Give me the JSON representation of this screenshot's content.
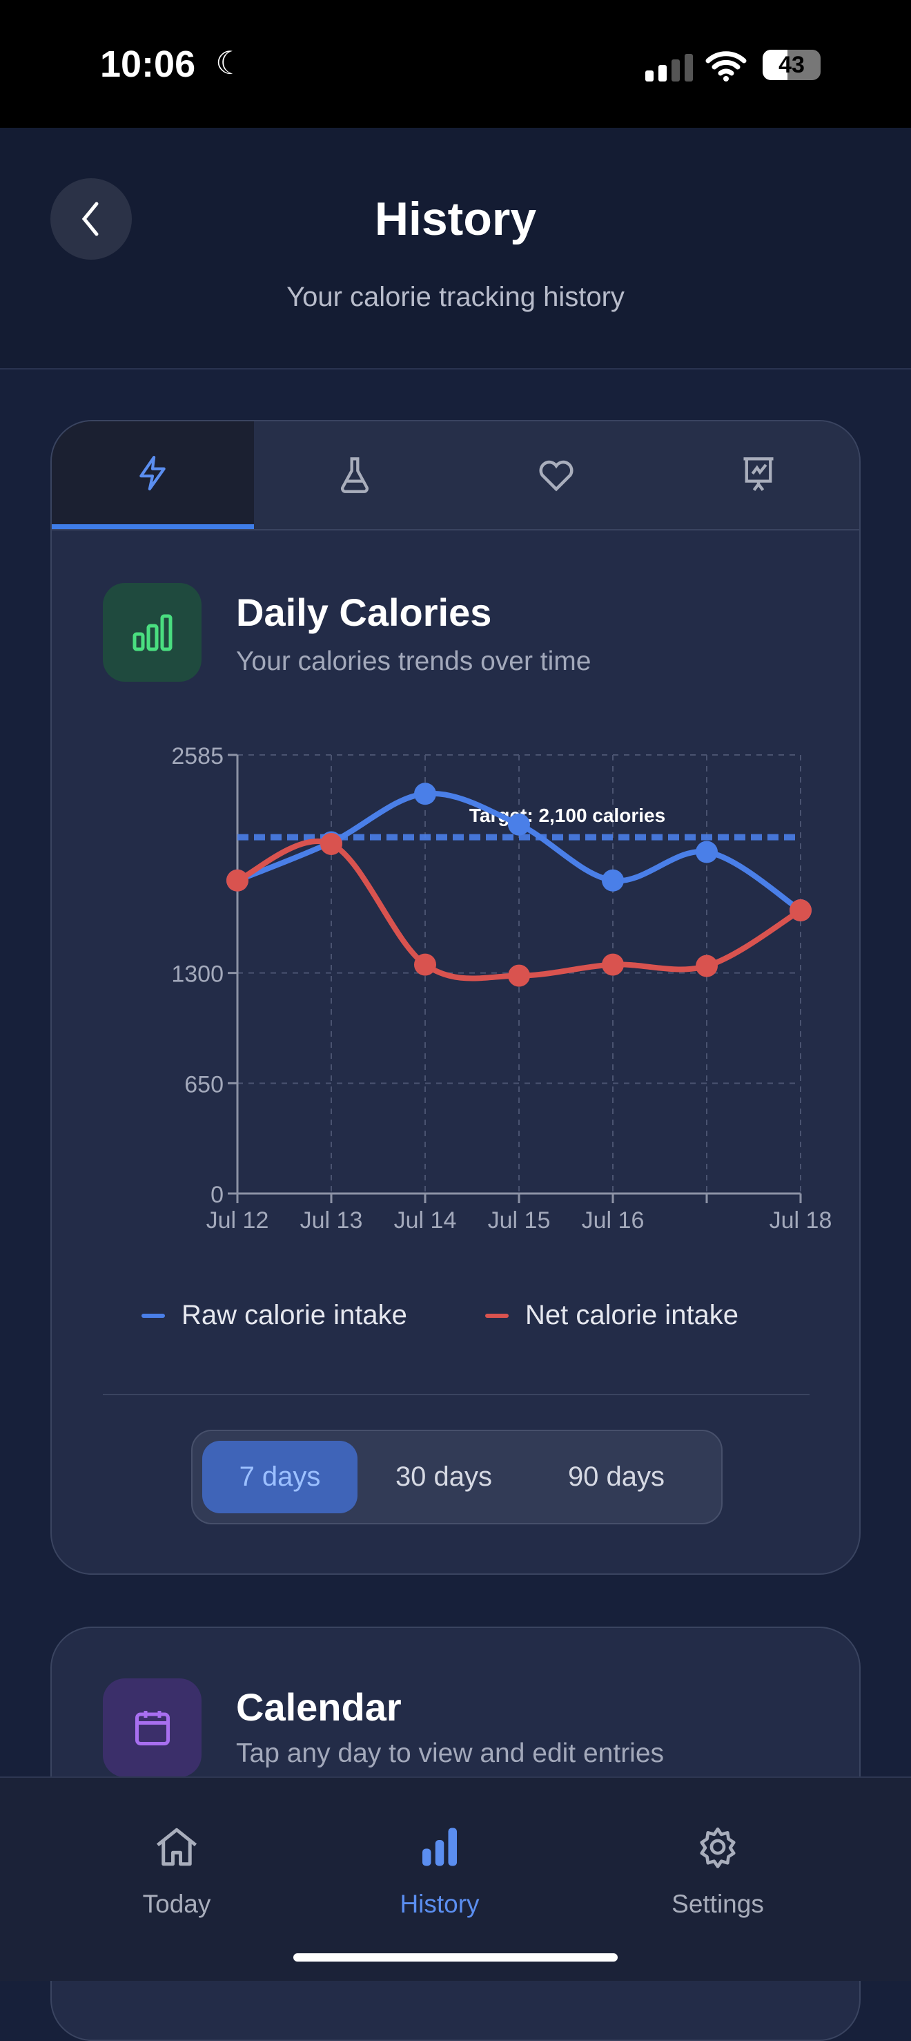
{
  "status_bar": {
    "time": "10:06",
    "battery": "43"
  },
  "header": {
    "title": "History",
    "subtitle": "Your calorie tracking history"
  },
  "tabs": [
    {
      "icon": "lightning-icon",
      "active": true
    },
    {
      "icon": "flask-icon"
    },
    {
      "icon": "heart-icon"
    },
    {
      "icon": "presentation-chart-icon"
    }
  ],
  "daily_card": {
    "title": "Daily Calories",
    "subtitle": "Your calories trends over time",
    "icon": "bar-chart-icon",
    "icon_color": "#4ade80"
  },
  "chart_data": {
    "type": "line",
    "categories": [
      "Jul 12",
      "Jul 13",
      "Jul 14",
      "Jul 15",
      "Jul 16",
      "",
      "Jul 18"
    ],
    "series": [
      {
        "name": "Raw calorie intake",
        "color": "#4a7fe8",
        "values": [
          1845,
          2070,
          2356,
          2175,
          1845,
          2013,
          1669
        ]
      },
      {
        "name": "Net calorie intake",
        "color": "#d9534f",
        "values": [
          1845,
          2060,
          1349,
          1284,
          1349,
          1341,
          1669
        ]
      }
    ],
    "yticks": [
      0,
      650,
      1300,
      2585
    ],
    "ylim": [
      0,
      2585
    ],
    "target": {
      "value": 2100,
      "label": "Target: 2,100 calories"
    },
    "grid": true,
    "legend": "bottom"
  },
  "range": {
    "options": [
      "7 days",
      "30 days",
      "90 days"
    ],
    "selected": "7 days"
  },
  "calendar_card": {
    "title": "Calendar",
    "subtitle": "Tap any day to view and edit entries",
    "icon": "calendar-icon",
    "icon_color": "#a86ff0"
  },
  "nav": [
    {
      "label": "Today",
      "icon": "home-icon"
    },
    {
      "label": "History",
      "icon": "bar-chart-icon",
      "active": true
    },
    {
      "label": "Settings",
      "icon": "gear-icon"
    }
  ]
}
